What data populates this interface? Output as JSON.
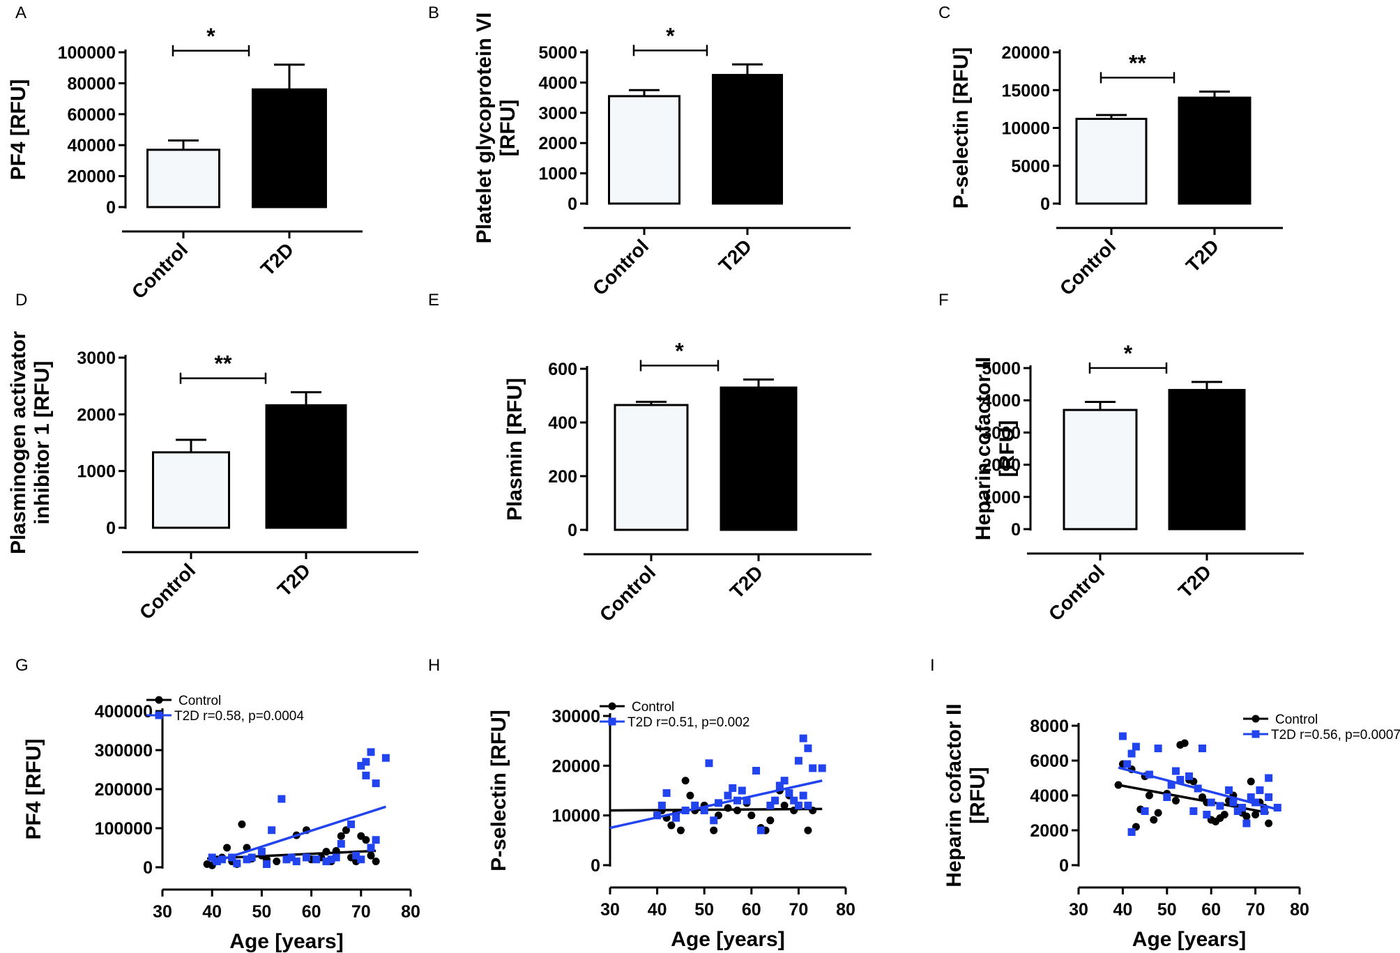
{
  "chart_data": [
    {
      "panel": "A",
      "type": "bar",
      "categories": [
        "Control",
        "T2D"
      ],
      "values": [
        37000,
        76000
      ],
      "errors": [
        6000,
        16000
      ],
      "bar_colors": [
        "#f5f8fb",
        "#000000"
      ],
      "ylabel": [
        "PF4 [RFU]"
      ],
      "ylim": [
        0,
        100000
      ],
      "yticks": [
        0,
        20000,
        40000,
        60000,
        80000,
        100000
      ],
      "significance": "*"
    },
    {
      "panel": "B",
      "type": "bar",
      "categories": [
        "Control",
        "T2D"
      ],
      "values": [
        3550,
        4250
      ],
      "errors": [
        200,
        350
      ],
      "bar_colors": [
        "#f5f8fb",
        "#000000"
      ],
      "ylabel": [
        "Platelet glycoprotein VI",
        "[RFU]"
      ],
      "ylim": [
        0,
        5000
      ],
      "yticks": [
        0,
        1000,
        2000,
        3000,
        4000,
        5000
      ],
      "significance": "*"
    },
    {
      "panel": "C",
      "type": "bar",
      "categories": [
        "Control",
        "T2D"
      ],
      "values": [
        11200,
        14000
      ],
      "errors": [
        500,
        800
      ],
      "bar_colors": [
        "#f5f8fb",
        "#000000"
      ],
      "ylabel": [
        "P-selectin [RFU]"
      ],
      "ylim": [
        0,
        20000
      ],
      "yticks": [
        0,
        5000,
        10000,
        15000,
        20000
      ],
      "significance": "**"
    },
    {
      "panel": "D",
      "type": "bar",
      "categories": [
        "Control",
        "T2D"
      ],
      "values": [
        1330,
        2160
      ],
      "errors": [
        220,
        230
      ],
      "bar_colors": [
        "#f5f8fb",
        "#000000"
      ],
      "ylabel": [
        "Plasminogen activator",
        "inhibitor 1 [RFU]"
      ],
      "ylim": [
        0,
        3000
      ],
      "yticks": [
        0,
        1000,
        2000,
        3000
      ],
      "significance": "**"
    },
    {
      "panel": "E",
      "type": "bar",
      "categories": [
        "Control",
        "T2D"
      ],
      "values": [
        465,
        530
      ],
      "errors": [
        12,
        30
      ],
      "bar_colors": [
        "#f5f8fb",
        "#000000"
      ],
      "ylabel": [
        "Plasmin [RFU]"
      ],
      "ylim": [
        0,
        600
      ],
      "yticks": [
        0,
        200,
        400,
        600
      ],
      "significance": "*"
    },
    {
      "panel": "F",
      "type": "bar",
      "categories": [
        "Control",
        "T2D"
      ],
      "values": [
        3700,
        4320
      ],
      "errors": [
        250,
        250
      ],
      "bar_colors": [
        "#f5f8fb",
        "#000000"
      ],
      "ylabel": [
        "Heparin cofactor II",
        "[RFU]"
      ],
      "ylim": [
        0,
        5000
      ],
      "yticks": [
        0,
        1000,
        2000,
        3000,
        4000,
        5000
      ],
      "significance": "*"
    },
    {
      "panel": "G",
      "type": "scatter",
      "xlabel": "Age [years]",
      "ylabel": [
        "PF4 [RFU]"
      ],
      "xlim": [
        30,
        80
      ],
      "ylim": [
        0,
        400000
      ],
      "xticks": [
        30,
        40,
        50,
        60,
        70,
        80
      ],
      "yticks": [
        0,
        100000,
        200000,
        300000,
        400000
      ],
      "legend": {
        "control": "Control",
        "t2d": "T2D  r=0.58, p=0.0004"
      },
      "series": [
        {
          "name": "Control",
          "color": "#000000",
          "marker": "circle",
          "fit": [
            [
              39,
              22000
            ],
            [
              73,
              42000
            ]
          ],
          "points": [
            [
              39,
              8000
            ],
            [
              40,
              5000
            ],
            [
              41,
              20000
            ],
            [
              42,
              25000
            ],
            [
              43,
              50000
            ],
            [
              44,
              15000
            ],
            [
              45,
              8000
            ],
            [
              46,
              110000
            ],
            [
              47,
              50000
            ],
            [
              48,
              22000
            ],
            [
              50,
              30000
            ],
            [
              51,
              20000
            ],
            [
              53,
              15000
            ],
            [
              55,
              20000
            ],
            [
              57,
              82000
            ],
            [
              59,
              95000
            ],
            [
              60,
              20000
            ],
            [
              62,
              25000
            ],
            [
              63,
              40000
            ],
            [
              64,
              15000
            ],
            [
              65,
              42000
            ],
            [
              66,
              80000
            ],
            [
              67,
              95000
            ],
            [
              68,
              25000
            ],
            [
              69,
              15000
            ],
            [
              70,
              80000
            ],
            [
              71,
              70000
            ],
            [
              72,
              30000
            ],
            [
              73,
              15000
            ]
          ]
        },
        {
          "name": "T2D",
          "color": "#2244ee",
          "marker": "square",
          "fit": [
            [
              40,
              12000
            ],
            [
              75,
              155000
            ]
          ],
          "points": [
            [
              40,
              25000
            ],
            [
              41,
              15000
            ],
            [
              42,
              20000
            ],
            [
              44,
              25000
            ],
            [
              45,
              10000
            ],
            [
              47,
              20000
            ],
            [
              48,
              25000
            ],
            [
              50,
              40000
            ],
            [
              51,
              8000
            ],
            [
              52,
              95000
            ],
            [
              54,
              175000
            ],
            [
              55,
              20000
            ],
            [
              56,
              25000
            ],
            [
              57,
              15000
            ],
            [
              59,
              25000
            ],
            [
              61,
              20000
            ],
            [
              63,
              15000
            ],
            [
              64,
              20000
            ],
            [
              65,
              25000
            ],
            [
              66,
              60000
            ],
            [
              68,
              110000
            ],
            [
              69,
              30000
            ],
            [
              70,
              20000
            ],
            [
              70,
              260000
            ],
            [
              71,
              270000
            ],
            [
              71,
              235000
            ],
            [
              72,
              295000
            ],
            [
              72,
              50000
            ],
            [
              73,
              215000
            ],
            [
              73,
              70000
            ],
            [
              75,
              280000
            ]
          ]
        }
      ]
    },
    {
      "panel": "H",
      "type": "scatter",
      "xlabel": "Age [years]",
      "ylabel": [
        "P-selectin [RFU]"
      ],
      "xlim": [
        30,
        80
      ],
      "ylim": [
        0,
        30000
      ],
      "xticks": [
        30,
        40,
        50,
        60,
        70,
        80
      ],
      "yticks": [
        0,
        10000,
        20000,
        30000
      ],
      "legend": {
        "control": "Control",
        "t2d": "T2D  r=0.51, p=0.002"
      },
      "series": [
        {
          "name": "Control",
          "color": "#000000",
          "marker": "circle",
          "fit": [
            [
              30,
              11000
            ],
            [
              75,
              11300
            ]
          ],
          "points": [
            [
              40,
              10000
            ],
            [
              41,
              11000
            ],
            [
              42,
              9500
            ],
            [
              43,
              8000
            ],
            [
              44,
              10500
            ],
            [
              45,
              7000
            ],
            [
              46,
              17000
            ],
            [
              47,
              14000
            ],
            [
              48,
              11000
            ],
            [
              50,
              12000
            ],
            [
              52,
              7000
            ],
            [
              53,
              10000
            ],
            [
              55,
              11500
            ],
            [
              57,
              11000
            ],
            [
              59,
              12500
            ],
            [
              60,
              10000
            ],
            [
              62,
              7500
            ],
            [
              63,
              7000
            ],
            [
              64,
              9000
            ],
            [
              65,
              13000
            ],
            [
              66,
              15000
            ],
            [
              67,
              12000
            ],
            [
              68,
              14000
            ],
            [
              69,
              11000
            ],
            [
              70,
              12000
            ],
            [
              72,
              7000
            ],
            [
              73,
              11000
            ]
          ]
        },
        {
          "name": "T2D",
          "color": "#2244ee",
          "marker": "square",
          "fit": [
            [
              30,
              7500
            ],
            [
              75,
              17000
            ]
          ],
          "points": [
            [
              40,
              10000
            ],
            [
              41,
              12000
            ],
            [
              42,
              14500
            ],
            [
              44,
              9500
            ],
            [
              46,
              11000
            ],
            [
              48,
              12000
            ],
            [
              50,
              11000
            ],
            [
              51,
              20500
            ],
            [
              52,
              9000
            ],
            [
              53,
              12500
            ],
            [
              55,
              14000
            ],
            [
              56,
              15500
            ],
            [
              57,
              13000
            ],
            [
              58,
              15000
            ],
            [
              59,
              13000
            ],
            [
              61,
              19000
            ],
            [
              62,
              7000
            ],
            [
              64,
              12000
            ],
            [
              65,
              13000
            ],
            [
              66,
              16000
            ],
            [
              67,
              17000
            ],
            [
              68,
              14500
            ],
            [
              69,
              13000
            ],
            [
              70,
              12000
            ],
            [
              70,
              21000
            ],
            [
              71,
              25500
            ],
            [
              71,
              14000
            ],
            [
              72,
              23500
            ],
            [
              72,
              12000
            ],
            [
              73,
              19500
            ],
            [
              75,
              19500
            ]
          ]
        }
      ]
    },
    {
      "panel": "I",
      "type": "scatter",
      "xlabel": "Age [years]",
      "ylabel": [
        "Heparin cofactor II",
        "[RFU]"
      ],
      "xlim": [
        30,
        80
      ],
      "ylim": [
        0,
        8000
      ],
      "xticks": [
        30,
        40,
        50,
        60,
        70,
        80
      ],
      "yticks": [
        0,
        2000,
        4000,
        6000,
        8000
      ],
      "legend": {
        "control": "Control",
        "t2d": "T2D  r=0.56, p=0.0007"
      },
      "series": [
        {
          "name": "Control",
          "color": "#000000",
          "marker": "circle",
          "fit": [
            [
              39,
              4600
            ],
            [
              73,
              3000
            ]
          ],
          "points": [
            [
              39,
              4600
            ],
            [
              40,
              5800
            ],
            [
              42,
              5500
            ],
            [
              43,
              2200
            ],
            [
              44,
              3200
            ],
            [
              45,
              5100
            ],
            [
              46,
              4000
            ],
            [
              47,
              2600
            ],
            [
              48,
              3000
            ],
            [
              50,
              4100
            ],
            [
              52,
              3700
            ],
            [
              53,
              6900
            ],
            [
              54,
              7000
            ],
            [
              55,
              4900
            ],
            [
              56,
              4800
            ],
            [
              57,
              4400
            ],
            [
              58,
              3900
            ],
            [
              59,
              3600
            ],
            [
              60,
              2600
            ],
            [
              61,
              2500
            ],
            [
              62,
              2700
            ],
            [
              63,
              2900
            ],
            [
              64,
              3700
            ],
            [
              65,
              4000
            ],
            [
              66,
              3300
            ],
            [
              67,
              3000
            ],
            [
              68,
              2800
            ],
            [
              69,
              4800
            ],
            [
              70,
              2900
            ],
            [
              71,
              3600
            ],
            [
              72,
              3300
            ],
            [
              73,
              2400
            ]
          ]
        },
        {
          "name": "T2D",
          "color": "#2244ee",
          "marker": "square",
          "fit": [
            [
              39,
              5600
            ],
            [
              75,
              3200
            ]
          ],
          "points": [
            [
              40,
              7400
            ],
            [
              41,
              5800
            ],
            [
              42,
              6400
            ],
            [
              42,
              1900
            ],
            [
              43,
              6800
            ],
            [
              45,
              3100
            ],
            [
              46,
              5200
            ],
            [
              48,
              6700
            ],
            [
              50,
              3900
            ],
            [
              51,
              4600
            ],
            [
              52,
              5400
            ],
            [
              53,
              4900
            ],
            [
              55,
              5100
            ],
            [
              56,
              3100
            ],
            [
              57,
              4400
            ],
            [
              58,
              6700
            ],
            [
              59,
              2900
            ],
            [
              60,
              3600
            ],
            [
              62,
              3400
            ],
            [
              64,
              4300
            ],
            [
              65,
              3600
            ],
            [
              66,
              3100
            ],
            [
              67,
              3300
            ],
            [
              68,
              2400
            ],
            [
              69,
              3900
            ],
            [
              70,
              3600
            ],
            [
              71,
              4300
            ],
            [
              72,
              3100
            ],
            [
              73,
              3900
            ],
            [
              73,
              5000
            ],
            [
              75,
              3300
            ]
          ]
        }
      ]
    }
  ]
}
